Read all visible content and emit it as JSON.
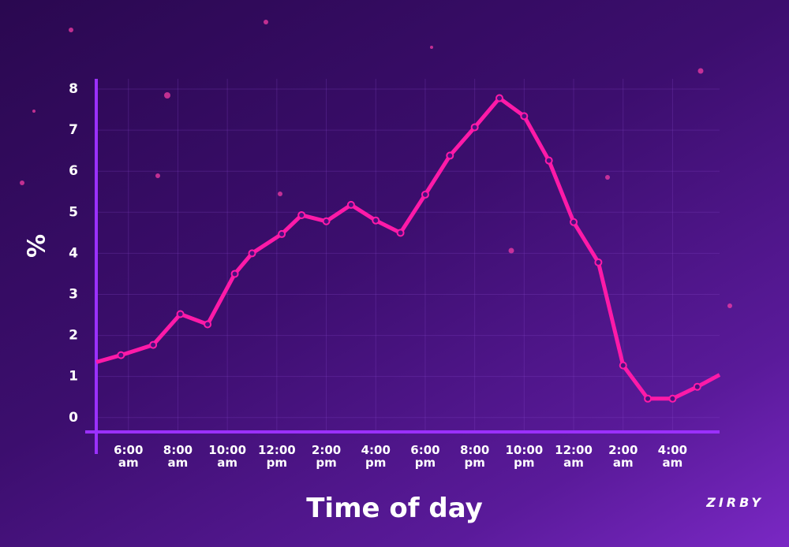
{
  "chart_data": {
    "type": "line",
    "y_label": "%",
    "x_label": "Time of day",
    "logo": "ZIRBY",
    "x": [
      4.7,
      5.7,
      7,
      8.1,
      9.2,
      10.3,
      11,
      12.2,
      13,
      14,
      15,
      16,
      17,
      18,
      19,
      20,
      21,
      22,
      23,
      24,
      25,
      26,
      27,
      28,
      29,
      29.9
    ],
    "series": [
      {
        "name": "%",
        "color": "#ff1aa8",
        "values": [
          1.35,
          1.52,
          1.77,
          2.52,
          2.27,
          3.5,
          4.0,
          4.47,
          4.93,
          4.78,
          5.18,
          4.8,
          4.5,
          5.43,
          6.38,
          7.07,
          7.78,
          7.34,
          6.26,
          4.76,
          3.78,
          1.27,
          0.46,
          0.46,
          0.75,
          1.04
        ]
      }
    ],
    "xlim": [
      4.7,
      29.9
    ],
    "xticks": [
      {
        "value": 6,
        "label": "6:00 am"
      },
      {
        "value": 8,
        "label": "8:00 am"
      },
      {
        "value": 10,
        "label": "10:00 am"
      },
      {
        "value": 12,
        "label": "12:00 pm"
      },
      {
        "value": 14,
        "label": "2:00 pm"
      },
      {
        "value": 16,
        "label": "4:00 pm"
      },
      {
        "value": 18,
        "label": "6:00 pm"
      },
      {
        "value": 20,
        "label": "8:00 pm"
      },
      {
        "value": 22,
        "label": "10:00 pm"
      },
      {
        "value": 24,
        "label": "12:00 am"
      },
      {
        "value": 26,
        "label": "2:00 am"
      },
      {
        "value": 28,
        "label": "4:00 am"
      }
    ],
    "ylim": [
      -0.35,
      8.25
    ],
    "yticks": [
      0,
      1,
      2,
      3,
      4,
      5,
      6,
      7,
      8
    ],
    "grid": true,
    "axis_color": "#9b30ff"
  }
}
